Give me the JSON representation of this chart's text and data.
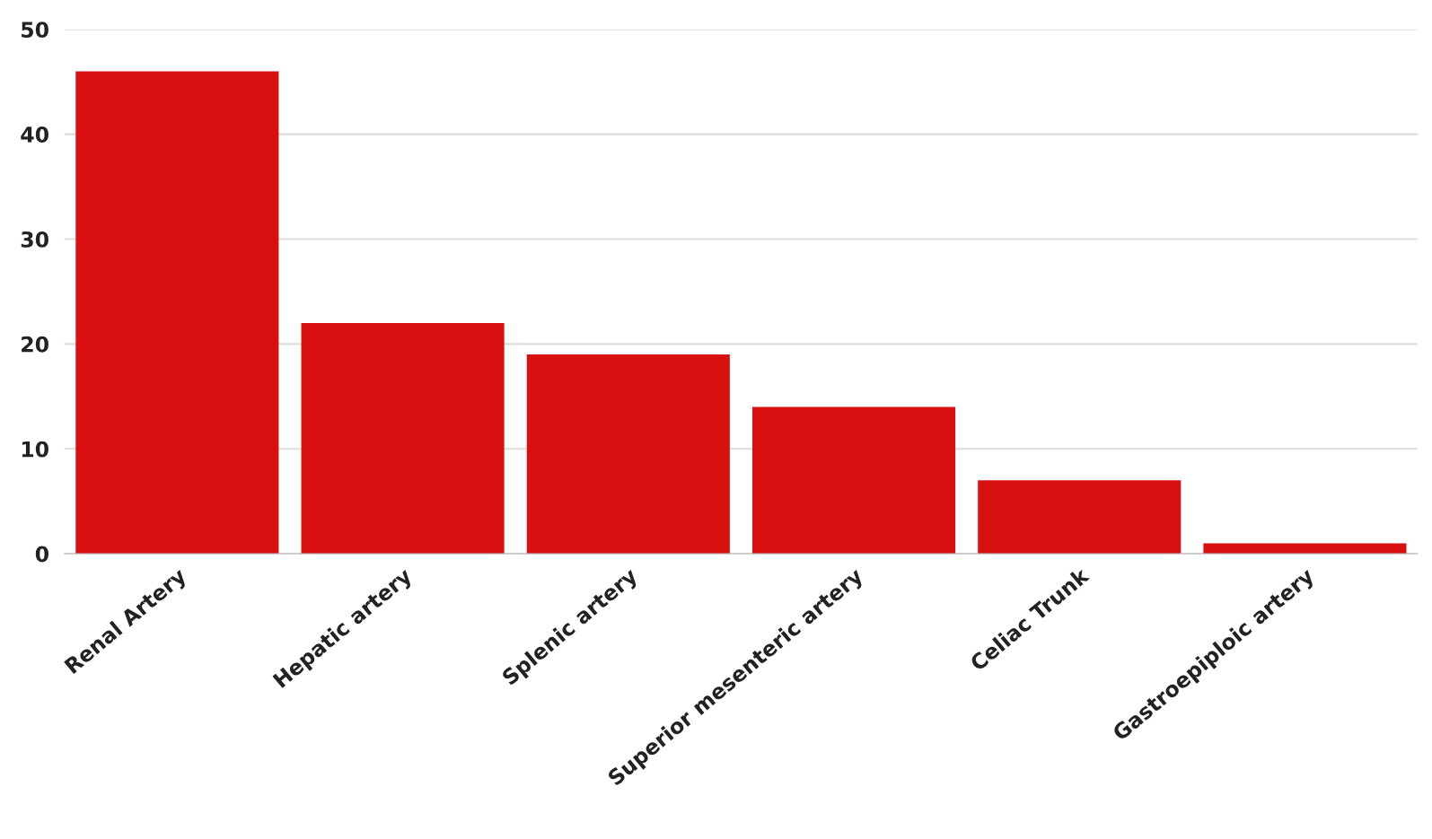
{
  "chart_data": {
    "type": "bar",
    "categories": [
      "Renal Artery",
      "Hepatic artery",
      "Splenic artery",
      "Superior mesenteric artery",
      "Celiac Trunk",
      "Gastroepiploic artery"
    ],
    "values": [
      46,
      22,
      19,
      14,
      7,
      1
    ],
    "color": "#d91010",
    "ylim": [
      0,
      50
    ],
    "yticks": [
      0,
      10,
      20,
      30,
      40,
      50
    ],
    "grid": "y"
  }
}
